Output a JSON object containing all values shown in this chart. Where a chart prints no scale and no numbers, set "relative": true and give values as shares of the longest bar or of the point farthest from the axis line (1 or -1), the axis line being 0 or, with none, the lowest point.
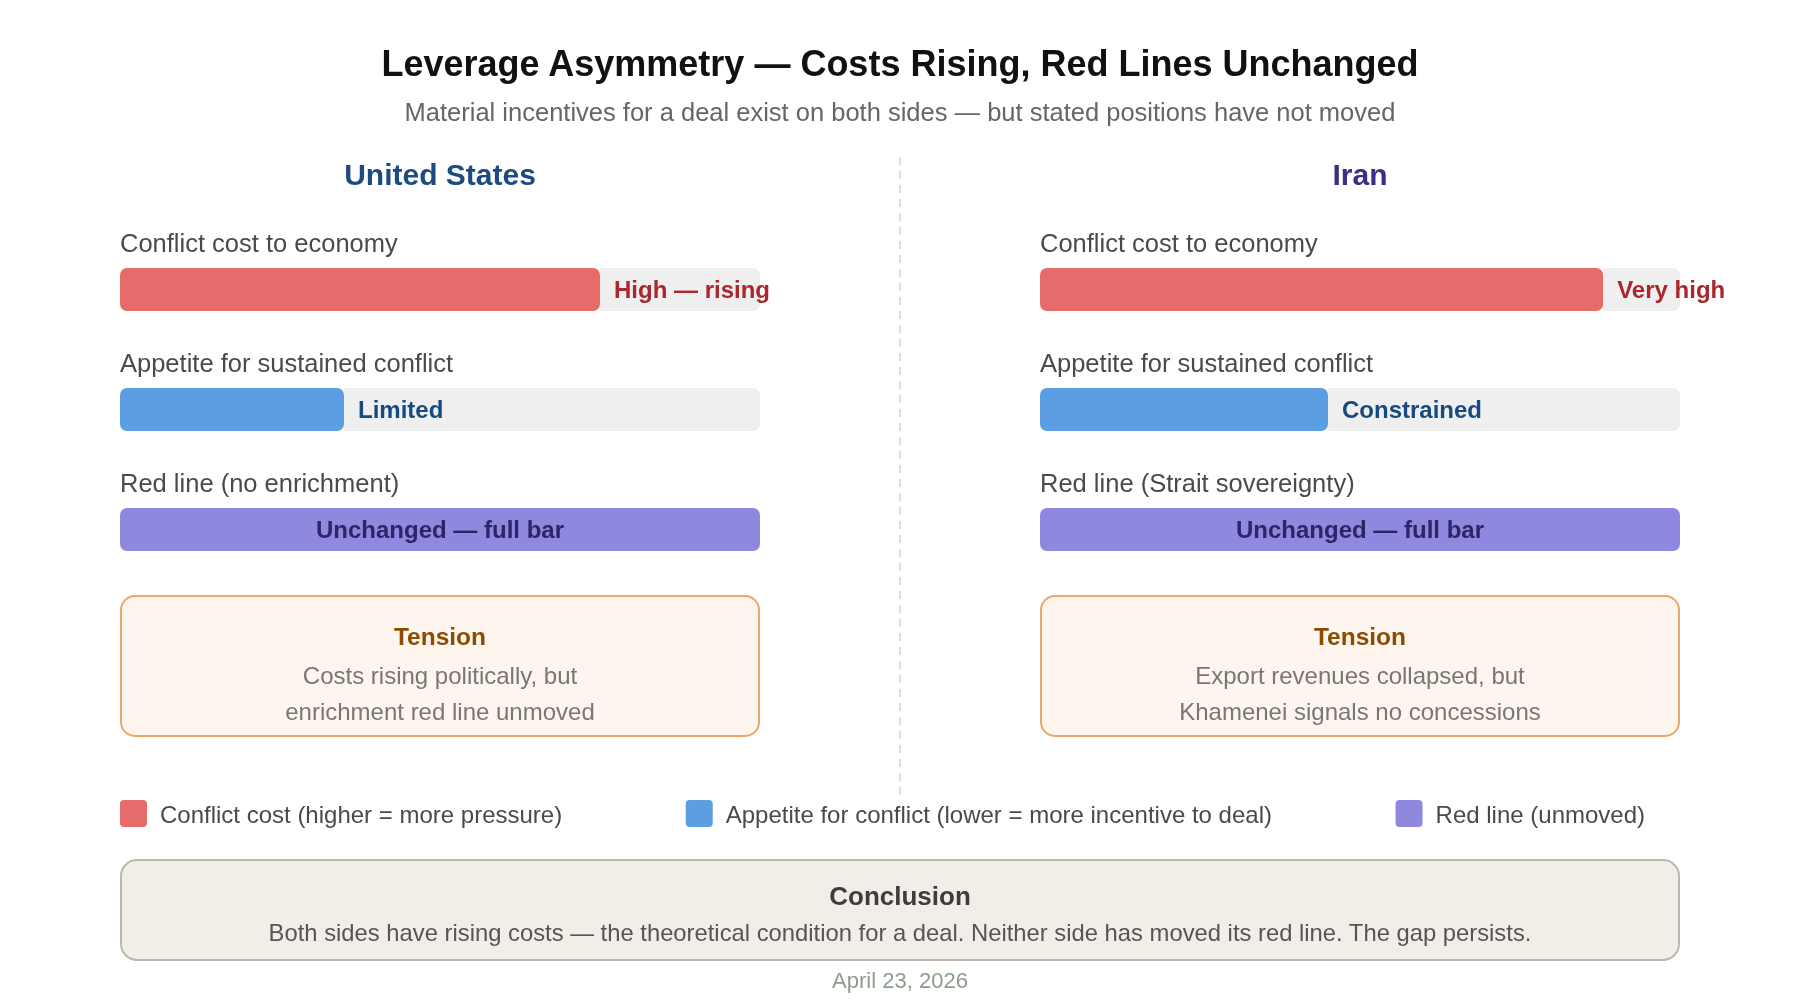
{
  "chart_data": [
    {
      "type": "other",
      "title": "Leverage Asymmetry — Costs Rising, Red Lines Unchanged",
      "subtitle": "Material incentives for a deal exist on both sides — but stated positions have not moved"
    },
    {
      "type": "bar",
      "title": "United States",
      "orientation": "horizontal",
      "relative": true,
      "stacked": true,
      "categories": [
        "Conflict cost to economy",
        "Appetite for sustained conflict",
        "Red line (no enrichment)"
      ],
      "series": [
        {
          "name": "Conflict cost (higher = more pressure)",
          "color": "#e66b6b",
          "values": [
            0.75,
            null,
            null
          ]
        },
        {
          "name": "Appetite for conflict (lower = more incentive to deal)",
          "color": "#5c9ee2",
          "values": [
            null,
            0.35,
            null
          ]
        },
        {
          "name": "Red line (unmoved)",
          "color": "#8f88df",
          "values": [
            null,
            null,
            1
          ]
        },
        {
          "color": "#efefef",
          "values": [
            0.25,
            0.65,
            null
          ]
        }
      ],
      "legend": "bottom",
      "annotations": [
        "Tension",
        "Costs rising politically, but enrichment red line unmoved",
        {
          "text": "High — rising",
          "x": 0.75,
          "y": "Conflict cost to economy"
        },
        {
          "text": "Limited",
          "x": 0.35,
          "y": "Appetite for sustained conflict"
        },
        "Unchanged — full bar"
      ]
    },
    {
      "type": "bar",
      "title": "Iran",
      "orientation": "horizontal",
      "relative": true,
      "stacked": true,
      "categories": [
        "Conflict cost to economy",
        "Appetite for sustained conflict",
        "Red line (Strait sovereignty)"
      ],
      "series": [
        {
          "color": "#e66b6b",
          "values": [
            0.88,
            null,
            null
          ]
        },
        {
          "color": "#5c9ee2",
          "values": [
            null,
            0.45,
            null
          ]
        },
        {
          "color": "#8f88df",
          "values": [
            null,
            null,
            1
          ]
        },
        {
          "color": "#efefef",
          "values": [
            0.12,
            0.55,
            null
          ]
        }
      ],
      "annotations": [
        "Tension",
        "Export revenues collapsed, but Khamenei signals no concessions",
        {
          "text": "Very high",
          "x": 0.88,
          "y": "Conflict cost to economy"
        },
        {
          "text": "Constrained",
          "x": 0.45,
          "y": "Appetite for sustained conflict"
        },
        "Unchanged — full bar"
      ]
    },
    {
      "type": "other",
      "title": "Conclusion",
      "annotations": [
        "Both sides have rising costs — the theoretical condition for a deal. Neither side has moved its red line. The gap persists.",
        "April 23, 2026"
      ]
    }
  ]
}
